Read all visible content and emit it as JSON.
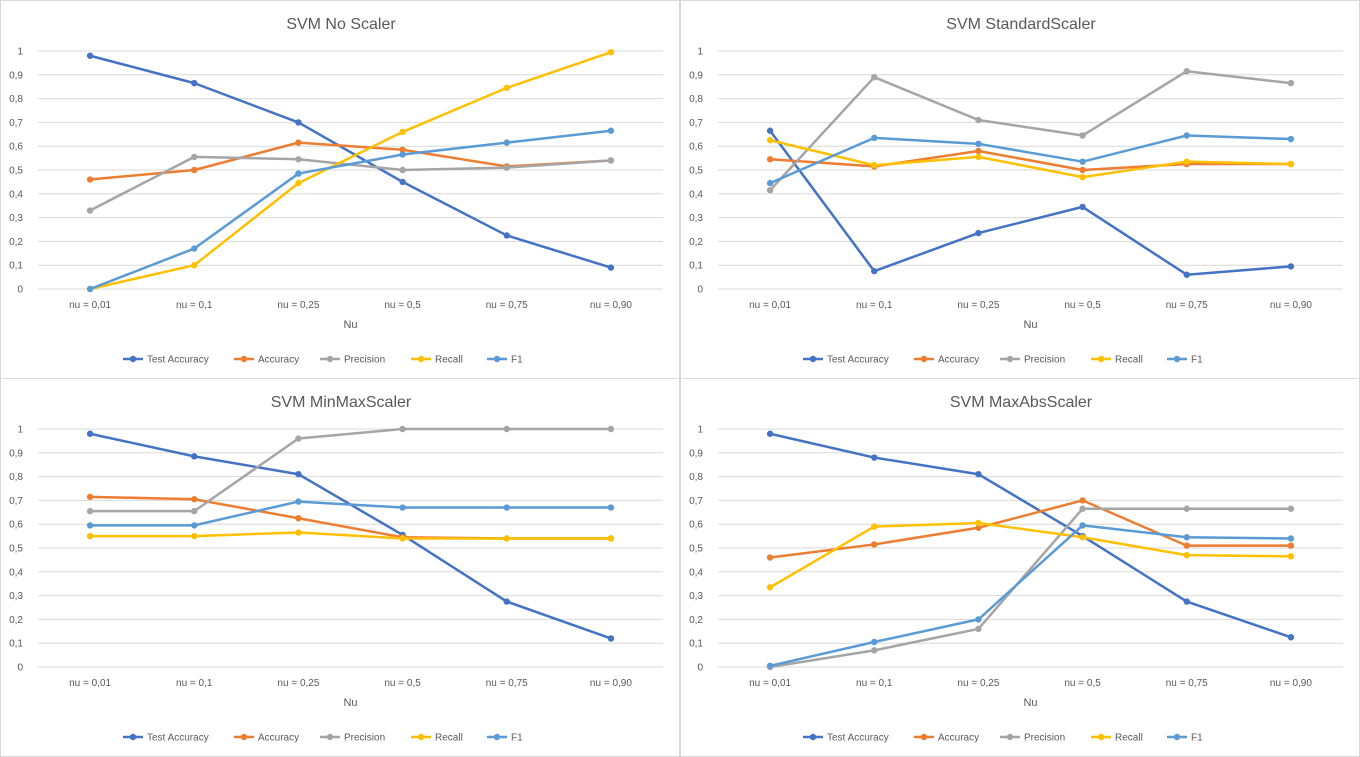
{
  "chart_data": [
    {
      "type": "line",
      "title": "SVM No Scaler",
      "xlabel": "Nu",
      "ylabel": "",
      "categories": [
        "nu = 0,01",
        "nu = 0,1",
        "nu = 0,25",
        "nu = 0,5",
        "nu = 0,75",
        "nu = 0,90"
      ],
      "yticks": [
        "0",
        "0,1",
        "0,2",
        "0,3",
        "0,4",
        "0,5",
        "0,6",
        "0,7",
        "0,8",
        "0,9",
        "1"
      ],
      "ylim": [
        0,
        1
      ],
      "grid": true,
      "legend": "bottom",
      "series": [
        {
          "name": "Test Accuracy",
          "color": "#4472c4",
          "values": [
            0.98,
            0.865,
            0.7,
            0.45,
            0.225,
            0.09
          ]
        },
        {
          "name": "Accuracy",
          "color": "#ed7d31",
          "values": [
            0.46,
            0.5,
            0.615,
            0.585,
            0.515,
            0.54
          ]
        },
        {
          "name": "Precision",
          "color": "#a5a5a5",
          "values": [
            0.33,
            0.555,
            0.545,
            0.5,
            0.51,
            0.54
          ]
        },
        {
          "name": "Recall",
          "color": "#ffc000",
          "values": [
            0.0,
            0.1,
            0.445,
            0.66,
            0.845,
            0.995
          ]
        },
        {
          "name": "F1",
          "color": "#5b9bd5",
          "values": [
            0.0,
            0.17,
            0.485,
            0.565,
            0.615,
            0.665
          ]
        }
      ]
    },
    {
      "type": "line",
      "title": "SVM StandardScaler",
      "xlabel": "Nu",
      "ylabel": "",
      "categories": [
        "nu = 0,01",
        "nu = 0,1",
        "nu = 0,25",
        "nu = 0,5",
        "nu = 0,75",
        "nu = 0,90"
      ],
      "yticks": [
        "0",
        "0,1",
        "0,2",
        "0,3",
        "0,4",
        "0,5",
        "0,6",
        "0,7",
        "0,8",
        "0,9",
        "1"
      ],
      "ylim": [
        0,
        1
      ],
      "grid": true,
      "legend": "bottom",
      "series": [
        {
          "name": "Test Accuracy",
          "color": "#4472c4",
          "values": [
            0.665,
            0.075,
            0.235,
            0.345,
            0.06,
            0.095
          ]
        },
        {
          "name": "Accuracy",
          "color": "#ed7d31",
          "values": [
            0.545,
            0.515,
            0.58,
            0.5,
            0.525,
            0.525
          ]
        },
        {
          "name": "Precision",
          "color": "#a5a5a5",
          "values": [
            0.415,
            0.89,
            0.71,
            0.645,
            0.915,
            0.865
          ]
        },
        {
          "name": "Recall",
          "color": "#ffc000",
          "values": [
            0.625,
            0.52,
            0.555,
            0.47,
            0.535,
            0.525
          ]
        },
        {
          "name": "F1",
          "color": "#5b9bd5",
          "values": [
            0.445,
            0.635,
            0.61,
            0.535,
            0.645,
            0.63
          ]
        }
      ]
    },
    {
      "type": "line",
      "title": "SVM MinMaxScaler",
      "xlabel": "Nu",
      "ylabel": "",
      "categories": [
        "nu = 0,01",
        "nu = 0,1",
        "nu = 0,25",
        "nu = 0,5",
        "nu = 0,75",
        "nu = 0,90"
      ],
      "yticks": [
        "0",
        "0,1",
        "0,2",
        "0,3",
        "0,4",
        "0,5",
        "0,6",
        "0,7",
        "0,8",
        "0,9",
        "1"
      ],
      "ylim": [
        0,
        1
      ],
      "grid": true,
      "legend": "bottom",
      "series": [
        {
          "name": "Test Accuracy",
          "color": "#4472c4",
          "values": [
            0.98,
            0.885,
            0.81,
            0.555,
            0.275,
            0.12
          ]
        },
        {
          "name": "Accuracy",
          "color": "#ed7d31",
          "values": [
            0.715,
            0.705,
            0.625,
            0.545,
            0.54,
            0.54
          ]
        },
        {
          "name": "Precision",
          "color": "#a5a5a5",
          "values": [
            0.655,
            0.655,
            0.96,
            1.0,
            1.0,
            1.0
          ]
        },
        {
          "name": "Recall",
          "color": "#ffc000",
          "values": [
            0.55,
            0.55,
            0.565,
            0.54,
            0.54,
            0.54
          ]
        },
        {
          "name": "F1",
          "color": "#5b9bd5",
          "values": [
            0.595,
            0.595,
            0.695,
            0.67,
            0.67,
            0.67
          ]
        }
      ]
    },
    {
      "type": "line",
      "title": "SVM MaxAbsScaler",
      "xlabel": "Nu",
      "ylabel": "",
      "categories": [
        "nu = 0,01",
        "nu = 0,1",
        "nu = 0,25",
        "nu = 0,5",
        "nu = 0,75",
        "nu = 0,90"
      ],
      "yticks": [
        "0",
        "0,1",
        "0,2",
        "0,3",
        "0,4",
        "0,5",
        "0,6",
        "0,7",
        "0,8",
        "0,9",
        "1"
      ],
      "ylim": [
        0,
        1
      ],
      "grid": true,
      "legend": "bottom",
      "series": [
        {
          "name": "Test Accuracy",
          "color": "#4472c4",
          "values": [
            0.98,
            0.88,
            0.81,
            0.55,
            0.275,
            0.125
          ]
        },
        {
          "name": "Accuracy",
          "color": "#ed7d31",
          "values": [
            0.46,
            0.515,
            0.585,
            0.7,
            0.51,
            0.51
          ]
        },
        {
          "name": "Precision",
          "color": "#a5a5a5",
          "values": [
            0.0,
            0.07,
            0.16,
            0.665,
            0.665,
            0.665
          ]
        },
        {
          "name": "Recall",
          "color": "#ffc000",
          "values": [
            0.335,
            0.59,
            0.605,
            0.545,
            0.47,
            0.465
          ]
        },
        {
          "name": "F1",
          "color": "#5b9bd5",
          "values": [
            0.005,
            0.105,
            0.2,
            0.595,
            0.545,
            0.54
          ]
        }
      ]
    }
  ]
}
